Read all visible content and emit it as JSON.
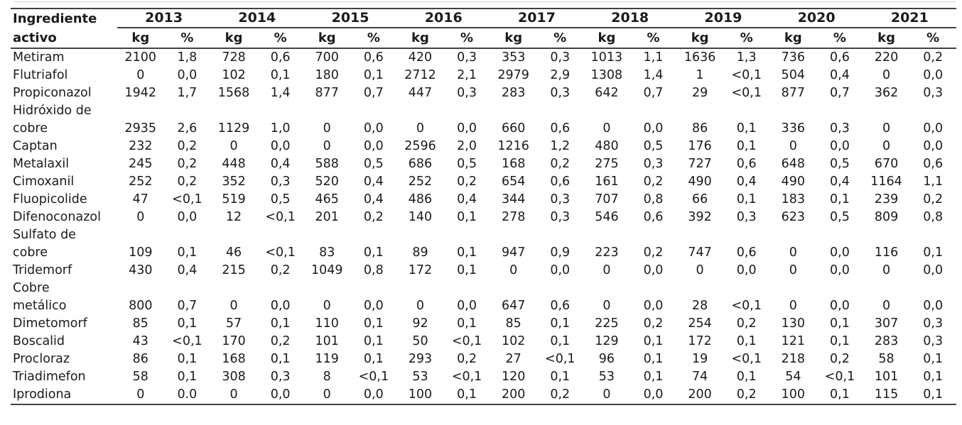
{
  "colors": {
    "background": "#ffffff",
    "text": "#1b1b1b",
    "rule": "#414141"
  },
  "table": {
    "row_header_label": "Ingrediente\nactivo",
    "years": [
      "2013",
      "2014",
      "2015",
      "2016",
      "2017",
      "2018",
      "2019",
      "2020",
      "2021"
    ],
    "sub_headers": {
      "kg": "kg",
      "pct": "%"
    },
    "rows": [
      {
        "name": "Metiram",
        "values": [
          "2100",
          "1,8",
          "728",
          "0,6",
          "700",
          "0,6",
          "420",
          "0,3",
          "353",
          "0,3",
          "1013",
          "1,1",
          "1636",
          "1,3",
          "736",
          "0,6",
          "220",
          "0,2"
        ]
      },
      {
        "name": "Flutriafol",
        "values": [
          "0",
          "0,0",
          "102",
          "0,1",
          "180",
          "0,1",
          "2712",
          "2,1",
          "2979",
          "2,9",
          "1308",
          "1,4",
          "1",
          "<0,1",
          "504",
          "0,4",
          "0",
          "0,0"
        ]
      },
      {
        "name": "Propiconazol",
        "values": [
          "1942",
          "1,7",
          "1568",
          "1,4",
          "877",
          "0,7",
          "447",
          "0,3",
          "283",
          "0,3",
          "642",
          "0,7",
          "29",
          "<0,1",
          "877",
          "0,7",
          "362",
          "0,3"
        ]
      },
      {
        "name": "Hidróxido de\ncobre",
        "values": [
          "2935",
          "2,6",
          "1129",
          "1,0",
          "0",
          "0,0",
          "0",
          "0,0",
          "660",
          "0,6",
          "0",
          "0,0",
          "86",
          "0,1",
          "336",
          "0,3",
          "0",
          "0,0"
        ]
      },
      {
        "name": "Captan",
        "values": [
          "232",
          "0,2",
          "0",
          "0,0",
          "0",
          "0,0",
          "2596",
          "2,0",
          "1216",
          "1,2",
          "480",
          "0,5",
          "176",
          "0,1",
          "0",
          "0,0",
          "0",
          "0,0"
        ]
      },
      {
        "name": "Metalaxil",
        "values": [
          "245",
          "0,2",
          "448",
          "0,4",
          "588",
          "0,5",
          "686",
          "0,5",
          "168",
          "0,2",
          "275",
          "0,3",
          "727",
          "0,6",
          "648",
          "0,5",
          "670",
          "0,6"
        ]
      },
      {
        "name": "Cimoxanil",
        "values": [
          "252",
          "0,2",
          "352",
          "0,3",
          "520",
          "0,4",
          "252",
          "0,2",
          "654",
          "0,6",
          "161",
          "0,2",
          "490",
          "0,4",
          "490",
          "0,4",
          "1164",
          "1,1"
        ]
      },
      {
        "name": "Fluopicolide",
        "values": [
          "47",
          "<0,1",
          "519",
          "0,5",
          "465",
          "0,4",
          "486",
          "0,4",
          "344",
          "0,3",
          "707",
          "0,8",
          "66",
          "0,1",
          "183",
          "0,1",
          "239",
          "0,2"
        ]
      },
      {
        "name": "Difenoconazol",
        "values": [
          "0",
          "0,0",
          "12",
          "<0,1",
          "201",
          "0,2",
          "140",
          "0,1",
          "278",
          "0,3",
          "546",
          "0,6",
          "392",
          "0,3",
          "623",
          "0,5",
          "809",
          "0,8"
        ]
      },
      {
        "name": "Sulfato de\ncobre",
        "values": [
          "109",
          "0,1",
          "46",
          "<0,1",
          "83",
          "0,1",
          "89",
          "0,1",
          "947",
          "0,9",
          "223",
          "0,2",
          "747",
          "0,6",
          "0",
          "0,0",
          "116",
          "0,1"
        ]
      },
      {
        "name": "Tridemorf",
        "values": [
          "430",
          "0,4",
          "215",
          "0,2",
          "1049",
          "0,8",
          "172",
          "0,1",
          "0",
          "0,0",
          "0",
          "0,0",
          "0",
          "0,0",
          "0",
          "0,0",
          "0",
          "0,0"
        ]
      },
      {
        "name": "Cobre\nmetálico",
        "values": [
          "800",
          "0,7",
          "0",
          "0,0",
          "0",
          "0,0",
          "0",
          "0,0",
          "647",
          "0,6",
          "0",
          "0,0",
          "28",
          "<0,1",
          "0",
          "0,0",
          "0",
          "0,0"
        ]
      },
      {
        "name": "Dimetomorf",
        "values": [
          "85",
          "0,1",
          "57",
          "0,1",
          "110",
          "0,1",
          "92",
          "0,1",
          "85",
          "0,1",
          "225",
          "0,2",
          "254",
          "0,2",
          "130",
          "0,1",
          "307",
          "0,3"
        ]
      },
      {
        "name": "Boscalid",
        "values": [
          "43",
          "<0,1",
          "170",
          "0,2",
          "101",
          "0,1",
          "50",
          "<0,1",
          "102",
          "0,1",
          "129",
          "0,1",
          "172",
          "0,1",
          "121",
          "0,1",
          "283",
          "0,3"
        ]
      },
      {
        "name": "Procloraz",
        "values": [
          "86",
          "0,1",
          "168",
          "0,1",
          "119",
          "0,1",
          "293",
          "0,2",
          "27",
          "<0,1",
          "96",
          "0,1",
          "19",
          "<0,1",
          "218",
          "0,2",
          "58",
          "0,1"
        ]
      },
      {
        "name": "Triadimefon",
        "values": [
          "58",
          "0,1",
          "308",
          "0,3",
          "8",
          "<0,1",
          "53",
          "<0,1",
          "120",
          "0,1",
          "53",
          "0,1",
          "74",
          "0,1",
          "54",
          "<0,1",
          "101",
          "0,1"
        ]
      },
      {
        "name": "Iprodiona",
        "values": [
          "0",
          "0.0",
          "0",
          "0,0",
          "0",
          "0,0",
          "100",
          "0,1",
          "200",
          "0,2",
          "0",
          "0,0",
          "200",
          "0,2",
          "100",
          "0,1",
          "115",
          "0,1"
        ]
      }
    ]
  }
}
